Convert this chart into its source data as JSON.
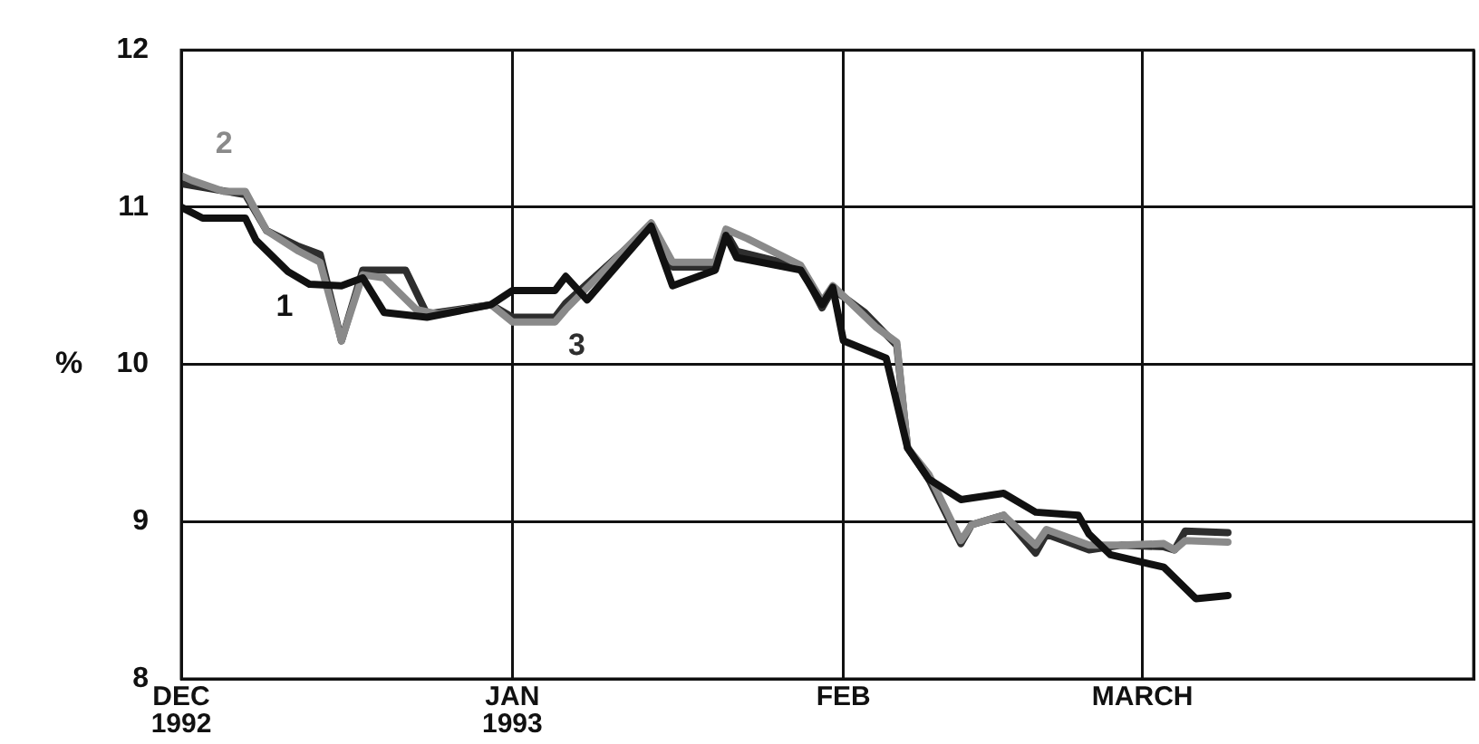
{
  "chart_data": {
    "type": "line",
    "ylabel": "%",
    "xlim": [
      "1992-12-01",
      "1993-04-01"
    ],
    "xticks": [
      {
        "value": "1992-12-01",
        "label": "DEC\n1992"
      },
      {
        "value": "1993-01-01",
        "label": "JAN\n1993"
      },
      {
        "value": "1993-02-01",
        "label": "FEB"
      },
      {
        "value": "1993-03-01",
        "label": "MARCH"
      },
      {
        "value": "1993-04-01",
        "label": null
      }
    ],
    "ylim": [
      8,
      12
    ],
    "yticks": [
      8,
      9,
      10,
      11,
      12
    ],
    "grid": true,
    "legend": false,
    "marker": "none",
    "line_style": "solid",
    "series": [
      {
        "name": "1",
        "color": "#111111",
        "x": [
          "1992-12-01",
          "1992-12-03",
          "1992-12-07",
          "1992-12-08",
          "1992-12-11",
          "1992-12-13",
          "1992-12-16",
          "1992-12-18",
          "1992-12-20",
          "1992-12-24",
          "1992-12-30",
          "1993-01-01",
          "1993-01-05",
          "1993-01-06",
          "1993-01-08",
          "1993-01-14",
          "1993-01-16",
          "1993-01-20",
          "1993-01-21",
          "1993-01-22",
          "1993-01-28",
          "1993-01-30",
          "1993-01-31",
          "1993-02-01",
          "1993-02-05",
          "1993-02-07",
          "1993-02-09",
          "1993-02-12",
          "1993-02-16",
          "1993-02-19",
          "1993-02-23",
          "1993-02-24",
          "1993-02-26",
          "1993-03-03",
          "1993-03-06",
          "1993-03-09"
        ],
        "values": [
          11.0,
          10.93,
          10.93,
          10.79,
          10.59,
          10.51,
          10.5,
          10.55,
          10.33,
          10.3,
          10.38,
          10.47,
          10.47,
          10.56,
          10.41,
          10.88,
          10.5,
          10.6,
          10.82,
          10.68,
          10.6,
          10.38,
          10.49,
          10.15,
          10.04,
          9.47,
          9.27,
          9.14,
          9.18,
          9.06,
          9.04,
          8.92,
          8.79,
          8.71,
          8.51,
          8.53
        ]
      },
      {
        "name": "2",
        "color": "#8a8a8a",
        "x": [
          "1992-12-01",
          "1992-12-02",
          "1992-12-05",
          "1992-12-07",
          "1992-12-09",
          "1992-12-12",
          "1992-12-14",
          "1992-12-16",
          "1992-12-18",
          "1992-12-20",
          "1992-12-23",
          "1992-12-25",
          "1992-12-30",
          "1993-01-01",
          "1993-01-05",
          "1993-01-06",
          "1993-01-14",
          "1993-01-16",
          "1993-01-20",
          "1993-01-21",
          "1993-01-23",
          "1993-01-28",
          "1993-01-30",
          "1993-01-31",
          "1993-02-04",
          "1993-02-06",
          "1993-02-07",
          "1993-02-09",
          "1993-02-12",
          "1993-02-13",
          "1993-02-16",
          "1993-02-19",
          "1993-02-20",
          "1993-02-24",
          "1993-02-27",
          "1993-03-03",
          "1993-03-04",
          "1993-03-05",
          "1993-03-09"
        ],
        "values": [
          11.2,
          11.17,
          11.1,
          11.1,
          10.85,
          10.72,
          10.65,
          10.15,
          10.57,
          10.55,
          10.35,
          10.32,
          10.38,
          10.27,
          10.27,
          10.35,
          10.9,
          10.65,
          10.65,
          10.86,
          10.8,
          10.63,
          10.4,
          10.5,
          10.24,
          10.14,
          9.47,
          9.3,
          8.88,
          8.98,
          9.04,
          8.85,
          8.95,
          8.85,
          8.85,
          8.86,
          8.82,
          8.88,
          8.87
        ]
      },
      {
        "name": "3",
        "color": "#2e2e2e",
        "x": [
          "1992-12-01",
          "1992-12-07",
          "1992-12-09",
          "1992-12-12",
          "1992-12-14",
          "1992-12-16",
          "1992-12-18",
          "1992-12-22",
          "1992-12-24",
          "1992-12-30",
          "1993-01-01",
          "1993-01-05",
          "1993-01-06",
          "1993-01-14",
          "1993-01-16",
          "1993-01-20",
          "1993-01-21",
          "1993-01-22",
          "1993-01-28",
          "1993-01-30",
          "1993-01-31",
          "1993-02-03",
          "1993-02-06",
          "1993-02-07",
          "1993-02-09",
          "1993-02-12",
          "1993-02-13",
          "1993-02-16",
          "1993-02-19",
          "1993-02-20",
          "1993-02-24",
          "1993-02-27",
          "1993-03-03",
          "1993-03-04",
          "1993-03-05",
          "1993-03-09"
        ],
        "values": [
          11.15,
          11.08,
          10.85,
          10.75,
          10.7,
          10.15,
          10.6,
          10.6,
          10.32,
          10.38,
          10.3,
          10.3,
          10.39,
          10.88,
          10.62,
          10.62,
          10.84,
          10.72,
          10.62,
          10.36,
          10.48,
          10.33,
          10.12,
          9.47,
          9.27,
          8.86,
          8.98,
          9.04,
          8.8,
          8.92,
          8.82,
          8.85,
          8.84,
          8.82,
          8.94,
          8.93
        ]
      }
    ]
  }
}
